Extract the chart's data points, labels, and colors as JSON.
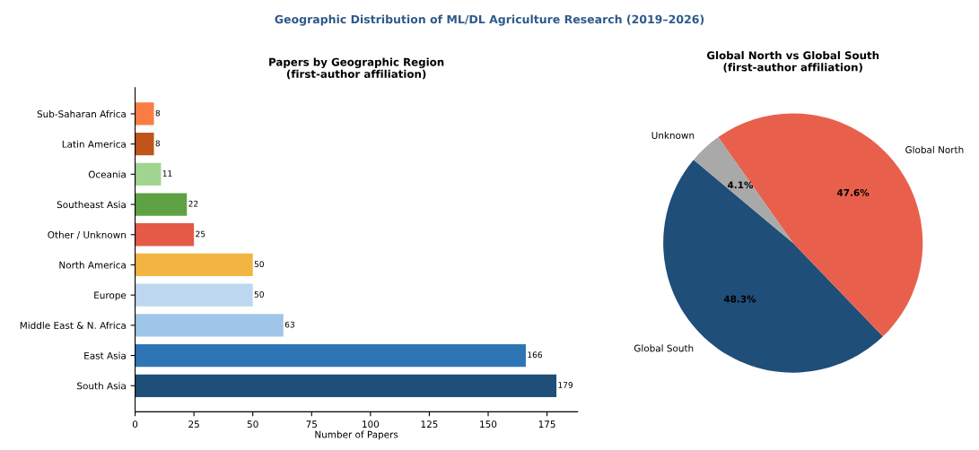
{
  "chart_data": [
    {
      "type": "bar",
      "orientation": "horizontal",
      "title": "Papers by Geographic Region\n(first-author affiliation)",
      "xlabel": "Number of Papers",
      "annotations": [
        "Geographic Distribution of ML/DL Agriculture Research (2019–2026)"
      ],
      "categories": [
        "Sub-Saharan Africa",
        "Latin America",
        "Oceania",
        "Southeast Asia",
        "Other / Unknown",
        "North America",
        "Europe",
        "Middle East & N. Africa",
        "East Asia",
        "South Asia"
      ],
      "values": [
        8,
        8,
        11,
        22,
        25,
        50,
        50,
        63,
        166,
        179
      ],
      "colors": [
        "#f97d42",
        "#c0541a",
        "#a1d48f",
        "#5ea245",
        "#e35a47",
        "#f2b541",
        "#bdd7ee",
        "#9fc5e8",
        "#2e75b6",
        "#1f4e79"
      ],
      "xlim": [
        0,
        188
      ],
      "xticks": [
        0,
        25,
        50,
        75,
        100,
        125,
        150,
        175
      ],
      "data_labels": true,
      "grid": false,
      "legend": false
    },
    {
      "type": "pie",
      "title": "Global North vs Global South\n(first-author affiliation)",
      "categories": [
        "Global South",
        "Global North",
        "Unknown"
      ],
      "values": [
        48.3,
        47.6,
        4.1
      ],
      "colors": [
        "#1f4e79",
        "#e8604c",
        "#a9a9a9"
      ],
      "value_labels": [
        "48.3%",
        "47.6%",
        "4.1%"
      ],
      "legend": false
    }
  ]
}
